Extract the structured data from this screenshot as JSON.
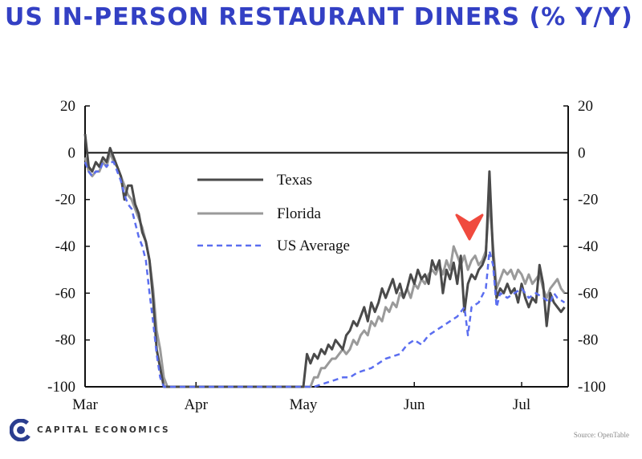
{
  "page": {
    "title": "US IN-PERSON RESTAURANT DINERS (% Y/Y)"
  },
  "branding": {
    "company": "CAPITAL ECONOMICS",
    "logo_icon": "capital-economics-c-logo-icon",
    "logo_color": "#2b3e8f"
  },
  "source": "Source: OpenTable",
  "colors": {
    "title": "#3340c4",
    "texas": "#4a4a4a",
    "florida": "#9a9a9a",
    "us_average": "#5b6ef0",
    "annotation": "#f04a3e"
  },
  "annotation": {
    "type": "arrow-down",
    "icon": "red-chevron-down-icon"
  },
  "chart_data": {
    "type": "line",
    "title": "US IN-PERSON RESTAURANT DINERS (% Y/Y)",
    "xlabel": "",
    "ylabel": "",
    "ylim": [
      -100,
      20
    ],
    "yticks": [
      20,
      0,
      -20,
      -40,
      -60,
      -80,
      -100
    ],
    "xticks": [
      "Mar",
      "Apr",
      "May",
      "Jun",
      "Jul"
    ],
    "x_axis": "days from the start of March",
    "grid": false,
    "zero_line": true,
    "legend": {
      "placement": "inside-upper-center",
      "entries": [
        "Texas",
        "Florida",
        "US Average"
      ]
    },
    "series": [
      {
        "name": "Texas",
        "style": "solid",
        "points": [
          [
            0,
            8
          ],
          [
            1,
            -6
          ],
          [
            2,
            -8
          ],
          [
            3,
            -4
          ],
          [
            4,
            -6
          ],
          [
            5,
            -2
          ],
          [
            6,
            -4
          ],
          [
            7,
            2
          ],
          [
            8,
            -2
          ],
          [
            9,
            -6
          ],
          [
            10,
            -10
          ],
          [
            11,
            -20
          ],
          [
            12,
            -14
          ],
          [
            13,
            -14
          ],
          [
            14,
            -22
          ],
          [
            15,
            -26
          ],
          [
            16,
            -34
          ],
          [
            17,
            -38
          ],
          [
            18,
            -46
          ],
          [
            19,
            -62
          ],
          [
            20,
            -84
          ],
          [
            21,
            -92
          ],
          [
            22,
            -100
          ],
          [
            23,
            -100
          ],
          [
            24,
            -100
          ],
          [
            60,
            -100
          ],
          [
            61,
            -100
          ],
          [
            62,
            -86
          ],
          [
            63,
            -90
          ],
          [
            64,
            -86
          ],
          [
            65,
            -88
          ],
          [
            66,
            -84
          ],
          [
            67,
            -86
          ],
          [
            68,
            -82
          ],
          [
            69,
            -84
          ],
          [
            70,
            -80
          ],
          [
            71,
            -82
          ],
          [
            72,
            -84
          ],
          [
            73,
            -78
          ],
          [
            74,
            -76
          ],
          [
            75,
            -72
          ],
          [
            76,
            -74
          ],
          [
            77,
            -70
          ],
          [
            78,
            -66
          ],
          [
            79,
            -72
          ],
          [
            80,
            -64
          ],
          [
            81,
            -68
          ],
          [
            82,
            -64
          ],
          [
            83,
            -58
          ],
          [
            84,
            -62
          ],
          [
            85,
            -58
          ],
          [
            86,
            -54
          ],
          [
            87,
            -60
          ],
          [
            88,
            -56
          ],
          [
            89,
            -62
          ],
          [
            90,
            -58
          ],
          [
            91,
            -52
          ],
          [
            92,
            -56
          ],
          [
            93,
            -50
          ],
          [
            94,
            -54
          ],
          [
            95,
            -52
          ],
          [
            96,
            -56
          ],
          [
            97,
            -46
          ],
          [
            98,
            -50
          ],
          [
            99,
            -46
          ],
          [
            100,
            -60
          ],
          [
            101,
            -50
          ],
          [
            102,
            -54
          ],
          [
            103,
            -47
          ],
          [
            104,
            -56
          ],
          [
            105,
            -44
          ],
          [
            106,
            -68
          ],
          [
            107,
            -56
          ],
          [
            108,
            -52
          ],
          [
            109,
            -54
          ],
          [
            110,
            -50
          ],
          [
            111,
            -48
          ],
          [
            112,
            -44
          ],
          [
            113,
            -8
          ],
          [
            114,
            -44
          ],
          [
            115,
            -62
          ],
          [
            116,
            -58
          ],
          [
            117,
            -60
          ],
          [
            118,
            -56
          ],
          [
            119,
            -60
          ],
          [
            120,
            -58
          ],
          [
            121,
            -64
          ],
          [
            122,
            -56
          ],
          [
            123,
            -62
          ],
          [
            124,
            -66
          ],
          [
            125,
            -62
          ],
          [
            126,
            -64
          ],
          [
            127,
            -48
          ],
          [
            128,
            -56
          ],
          [
            129,
            -74
          ],
          [
            130,
            -60
          ],
          [
            131,
            -64
          ],
          [
            132,
            -66
          ],
          [
            133,
            -68
          ],
          [
            134,
            -66
          ]
        ]
      },
      {
        "name": "Florida",
        "style": "solid",
        "points": [
          [
            0,
            -2
          ],
          [
            1,
            -8
          ],
          [
            2,
            -10
          ],
          [
            3,
            -8
          ],
          [
            4,
            -8
          ],
          [
            5,
            -4
          ],
          [
            6,
            -6
          ],
          [
            7,
            0
          ],
          [
            8,
            -4
          ],
          [
            9,
            -6
          ],
          [
            10,
            -10
          ],
          [
            11,
            -14
          ],
          [
            12,
            -18
          ],
          [
            13,
            -20
          ],
          [
            14,
            -24
          ],
          [
            15,
            -28
          ],
          [
            16,
            -32
          ],
          [
            17,
            -38
          ],
          [
            18,
            -46
          ],
          [
            19,
            -58
          ],
          [
            20,
            -76
          ],
          [
            21,
            -84
          ],
          [
            22,
            -96
          ],
          [
            23,
            -100
          ],
          [
            24,
            -100
          ],
          [
            62,
            -100
          ],
          [
            63,
            -100
          ],
          [
            64,
            -96
          ],
          [
            65,
            -96
          ],
          [
            66,
            -92
          ],
          [
            67,
            -92
          ],
          [
            68,
            -90
          ],
          [
            69,
            -88
          ],
          [
            70,
            -88
          ],
          [
            71,
            -86
          ],
          [
            72,
            -84
          ],
          [
            73,
            -86
          ],
          [
            74,
            -84
          ],
          [
            75,
            -80
          ],
          [
            76,
            -82
          ],
          [
            77,
            -78
          ],
          [
            78,
            -76
          ],
          [
            79,
            -78
          ],
          [
            80,
            -72
          ],
          [
            81,
            -74
          ],
          [
            82,
            -70
          ],
          [
            83,
            -72
          ],
          [
            84,
            -66
          ],
          [
            85,
            -68
          ],
          [
            86,
            -64
          ],
          [
            87,
            -66
          ],
          [
            88,
            -60
          ],
          [
            89,
            -62
          ],
          [
            90,
            -58
          ],
          [
            91,
            -62
          ],
          [
            92,
            -56
          ],
          [
            93,
            -58
          ],
          [
            94,
            -54
          ],
          [
            95,
            -56
          ],
          [
            96,
            -52
          ],
          [
            97,
            -50
          ],
          [
            98,
            -52
          ],
          [
            99,
            -48
          ],
          [
            100,
            -52
          ],
          [
            101,
            -46
          ],
          [
            102,
            -50
          ],
          [
            103,
            -40
          ],
          [
            104,
            -44
          ],
          [
            105,
            -48
          ],
          [
            106,
            -44
          ],
          [
            107,
            -50
          ],
          [
            108,
            -46
          ],
          [
            109,
            -44
          ],
          [
            110,
            -48
          ],
          [
            111,
            -46
          ],
          [
            112,
            -42
          ],
          [
            113,
            -20
          ],
          [
            114,
            -40
          ],
          [
            115,
            -58
          ],
          [
            116,
            -54
          ],
          [
            117,
            -50
          ],
          [
            118,
            -52
          ],
          [
            119,
            -50
          ],
          [
            120,
            -54
          ],
          [
            121,
            -50
          ],
          [
            122,
            -52
          ],
          [
            123,
            -56
          ],
          [
            124,
            -52
          ],
          [
            125,
            -56
          ],
          [
            126,
            -54
          ],
          [
            127,
            -52
          ],
          [
            128,
            -58
          ],
          [
            129,
            -62
          ],
          [
            130,
            -58
          ],
          [
            131,
            -56
          ],
          [
            132,
            -54
          ],
          [
            133,
            -58
          ],
          [
            134,
            -60
          ]
        ]
      },
      {
        "name": "US Average",
        "style": "dashed",
        "points": [
          [
            0,
            -4
          ],
          [
            1,
            -8
          ],
          [
            2,
            -10
          ],
          [
            3,
            -8
          ],
          [
            4,
            -8
          ],
          [
            5,
            -4
          ],
          [
            6,
            -6
          ],
          [
            7,
            -4
          ],
          [
            8,
            -4
          ],
          [
            9,
            -8
          ],
          [
            10,
            -12
          ],
          [
            11,
            -18
          ],
          [
            12,
            -22
          ],
          [
            13,
            -24
          ],
          [
            14,
            -30
          ],
          [
            15,
            -36
          ],
          [
            16,
            -40
          ],
          [
            17,
            -46
          ],
          [
            18,
            -60
          ],
          [
            19,
            -72
          ],
          [
            20,
            -86
          ],
          [
            21,
            -96
          ],
          [
            22,
            -100
          ],
          [
            23,
            -100
          ],
          [
            63,
            -100
          ],
          [
            64,
            -100
          ],
          [
            66,
            -99
          ],
          [
            68,
            -98
          ],
          [
            70,
            -97
          ],
          [
            72,
            -96
          ],
          [
            74,
            -96
          ],
          [
            76,
            -94
          ],
          [
            78,
            -93
          ],
          [
            80,
            -92
          ],
          [
            82,
            -90
          ],
          [
            84,
            -88
          ],
          [
            86,
            -87
          ],
          [
            88,
            -86
          ],
          [
            90,
            -82
          ],
          [
            92,
            -80
          ],
          [
            94,
            -82
          ],
          [
            96,
            -78
          ],
          [
            98,
            -76
          ],
          [
            100,
            -74
          ],
          [
            102,
            -72
          ],
          [
            104,
            -70
          ],
          [
            106,
            -66
          ],
          [
            107,
            -78
          ],
          [
            108,
            -66
          ],
          [
            110,
            -64
          ],
          [
            112,
            -58
          ],
          [
            113,
            -42
          ],
          [
            114,
            -48
          ],
          [
            115,
            -66
          ],
          [
            116,
            -60
          ],
          [
            118,
            -62
          ],
          [
            120,
            -60
          ],
          [
            122,
            -58
          ],
          [
            124,
            -62
          ],
          [
            126,
            -60
          ],
          [
            128,
            -62
          ],
          [
            130,
            -64
          ],
          [
            131,
            -60
          ],
          [
            132,
            -62
          ],
          [
            134,
            -64
          ]
        ]
      }
    ]
  }
}
